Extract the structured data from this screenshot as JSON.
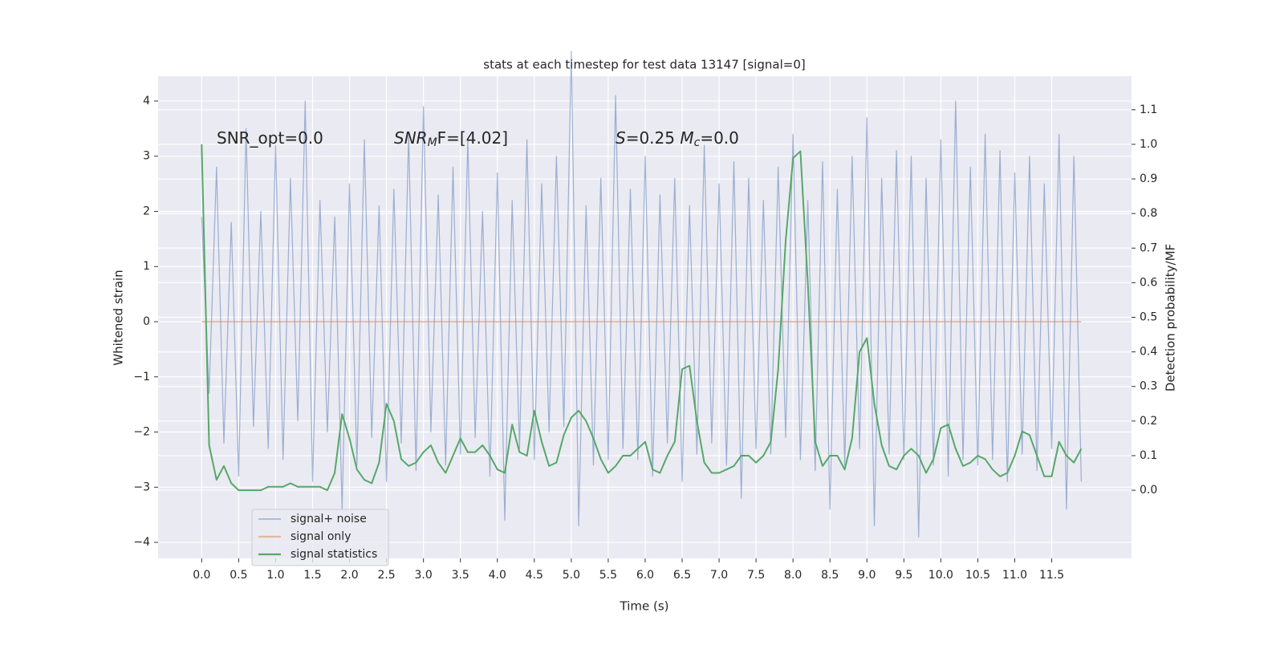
{
  "chart_data": {
    "type": "line",
    "title": "stats at each timestep for test data 13147 [signal=0]",
    "xlabel": "Time (s)",
    "ylabel": "Whitened strain",
    "y2label": "Detection probability/MF",
    "annotations": [
      {
        "parts": [
          "SNR_opt=0.0"
        ]
      },
      {
        "parts": [
          "SNR",
          "M",
          "F=[4.02]"
        ]
      },
      {
        "parts": [
          "S",
          "=0.25   ",
          "M",
          "c",
          "=0.0"
        ]
      }
    ],
    "x": [
      0.0,
      0.1,
      0.2,
      0.3,
      0.4,
      0.5,
      0.6,
      0.7,
      0.8,
      0.9,
      1.0,
      1.1,
      1.2,
      1.3,
      1.4,
      1.5,
      1.6,
      1.7,
      1.8,
      1.9,
      2.0,
      2.1,
      2.2,
      2.3,
      2.4,
      2.5,
      2.6,
      2.7,
      2.8,
      2.9,
      3.0,
      3.1,
      3.2,
      3.3,
      3.4,
      3.5,
      3.6,
      3.7,
      3.8,
      3.9,
      4.0,
      4.1,
      4.2,
      4.3,
      4.4,
      4.5,
      4.6,
      4.7,
      4.8,
      4.9,
      5.0,
      5.1,
      5.2,
      5.3,
      5.4,
      5.5,
      5.6,
      5.7,
      5.8,
      5.9,
      6.0,
      6.1,
      6.2,
      6.3,
      6.4,
      6.5,
      6.6,
      6.7,
      6.8,
      6.9,
      7.0,
      7.1,
      7.2,
      7.3,
      7.4,
      7.5,
      7.6,
      7.7,
      7.8,
      7.9,
      8.0,
      8.1,
      8.2,
      8.3,
      8.4,
      8.5,
      8.6,
      8.7,
      8.8,
      8.9,
      9.0,
      9.1,
      9.2,
      9.3,
      9.4,
      9.5,
      9.6,
      9.7,
      9.8,
      9.9,
      10.0,
      10.1,
      10.2,
      10.3,
      10.4,
      10.5,
      10.6,
      10.7,
      10.8,
      10.9,
      11.0,
      11.1,
      11.2,
      11.3,
      11.4,
      11.5,
      11.6,
      11.7,
      11.8,
      11.9
    ],
    "series": [
      {
        "name": "signal+ noise",
        "color": "#4c72b0",
        "values": [
          1.9,
          -1.3,
          2.8,
          -2.2,
          1.8,
          -2.8,
          3.5,
          -1.9,
          2.0,
          -2.3,
          3.2,
          -2.5,
          2.6,
          -1.8,
          4.0,
          -2.9,
          2.2,
          -2.0,
          1.9,
          -3.4,
          2.5,
          -2.6,
          3.3,
          -2.1,
          2.1,
          -2.9,
          2.4,
          -2.2,
          3.4,
          -2.7,
          3.9,
          -2.0,
          2.3,
          -2.6,
          2.8,
          -2.4,
          3.3,
          -2.1,
          2.0,
          -2.8,
          2.7,
          -3.6,
          2.2,
          -2.3,
          3.3,
          -2.5,
          2.5,
          -2.0,
          3.0,
          -1.9,
          4.9,
          -3.7,
          2.1,
          -2.6,
          2.6,
          -2.5,
          4.1,
          -2.3,
          2.4,
          -2.5,
          3.0,
          -2.8,
          2.3,
          -2.2,
          2.6,
          -2.9,
          2.1,
          -2.4,
          3.2,
          -2.2,
          2.5,
          -2.6,
          2.9,
          -3.2,
          2.6,
          -2.3,
          2.2,
          -2.4,
          2.8,
          -2.1,
          3.4,
          -2.5,
          2.2,
          -2.7,
          2.9,
          -3.4,
          2.4,
          -2.6,
          3.0,
          -2.3,
          3.7,
          -3.7,
          2.6,
          -2.4,
          3.1,
          -2.5,
          3.0,
          -3.9,
          2.6,
          -2.6,
          3.3,
          -2.8,
          4.0,
          -2.5,
          2.8,
          -2.6,
          3.4,
          -2.5,
          3.1,
          -2.9,
          2.7,
          -2.4,
          3.0,
          -2.7,
          2.5,
          -2.3,
          3.4,
          -3.4,
          3.0,
          -2.9
        ]
      },
      {
        "name": "signal only",
        "color": "#dd8452",
        "x": [
          0.0,
          11.9
        ],
        "values": [
          0,
          0
        ]
      },
      {
        "name": "signal statistics",
        "color": "#55a868",
        "axis": "y2",
        "values": [
          1.0,
          0.13,
          0.03,
          0.07,
          0.02,
          0.0,
          0.0,
          0.0,
          0.0,
          0.01,
          0.01,
          0.01,
          0.02,
          0.01,
          0.01,
          0.01,
          0.01,
          0.0,
          0.05,
          0.22,
          0.15,
          0.06,
          0.03,
          0.02,
          0.08,
          0.25,
          0.2,
          0.09,
          0.07,
          0.08,
          0.11,
          0.13,
          0.08,
          0.05,
          0.1,
          0.15,
          0.11,
          0.11,
          0.13,
          0.1,
          0.06,
          0.05,
          0.19,
          0.11,
          0.1,
          0.23,
          0.14,
          0.07,
          0.08,
          0.16,
          0.21,
          0.23,
          0.2,
          0.15,
          0.09,
          0.05,
          0.07,
          0.1,
          0.1,
          0.12,
          0.14,
          0.06,
          0.05,
          0.1,
          0.14,
          0.35,
          0.36,
          0.2,
          0.08,
          0.05,
          0.05,
          0.06,
          0.07,
          0.1,
          0.1,
          0.08,
          0.1,
          0.14,
          0.35,
          0.72,
          0.96,
          0.98,
          0.6,
          0.14,
          0.07,
          0.1,
          0.1,
          0.06,
          0.15,
          0.4,
          0.44,
          0.25,
          0.13,
          0.07,
          0.06,
          0.1,
          0.12,
          0.1,
          0.05,
          0.09,
          0.18,
          0.19,
          0.12,
          0.07,
          0.08,
          0.1,
          0.09,
          0.06,
          0.04,
          0.05,
          0.1,
          0.17,
          0.16,
          0.1,
          0.04,
          0.04,
          0.14,
          0.1,
          0.08,
          0.12
        ]
      }
    ],
    "xlim": [
      -0.59,
      12.58
    ],
    "xticks": [
      {
        "value": 0.0,
        "label": "0.0"
      },
      {
        "value": 0.5,
        "label": "0.5"
      },
      {
        "value": 1.0,
        "label": "1.0"
      },
      {
        "value": 1.5,
        "label": "1.5"
      },
      {
        "value": 2.0,
        "label": "2.0"
      },
      {
        "value": 2.5,
        "label": "2.5"
      },
      {
        "value": 3.0,
        "label": "3.0"
      },
      {
        "value": 3.5,
        "label": "3.5"
      },
      {
        "value": 4.0,
        "label": "4.0"
      },
      {
        "value": 4.5,
        "label": "4.5"
      },
      {
        "value": 5.0,
        "label": "5.0"
      },
      {
        "value": 5.5,
        "label": "5.5"
      },
      {
        "value": 6.0,
        "label": "6.0"
      },
      {
        "value": 6.5,
        "label": "6.5"
      },
      {
        "value": 7.0,
        "label": "7.0"
      },
      {
        "value": 7.5,
        "label": "7.5"
      },
      {
        "value": 8.0,
        "label": "8.0"
      },
      {
        "value": 8.5,
        "label": "8.5"
      },
      {
        "value": 9.0,
        "label": "9.0"
      },
      {
        "value": 9.5,
        "label": "9.5"
      },
      {
        "value": 10.0,
        "label": "10.0"
      },
      {
        "value": 10.5,
        "label": "10.5"
      },
      {
        "value": 11.0,
        "label": "11.0"
      },
      {
        "value": 11.5,
        "label": "11.5"
      }
    ],
    "ylim": [
      -4.29,
      4.45
    ],
    "yticks": [
      {
        "value": -4,
        "label": "−4"
      },
      {
        "value": -3,
        "label": "−3"
      },
      {
        "value": -2,
        "label": "−2"
      },
      {
        "value": -1,
        "label": "−1"
      },
      0,
      1,
      2,
      3,
      4
    ],
    "y2lim": [
      -0.197,
      1.197
    ],
    "y2ticks": [
      {
        "value": 0.0,
        "label": "0.0"
      },
      0.1,
      0.2,
      0.3,
      0.4,
      0.5,
      0.6,
      0.7,
      0.8,
      0.9,
      {
        "value": 1.0,
        "label": "1.0"
      },
      1.1
    ],
    "grid": true,
    "legend": "lower left"
  }
}
